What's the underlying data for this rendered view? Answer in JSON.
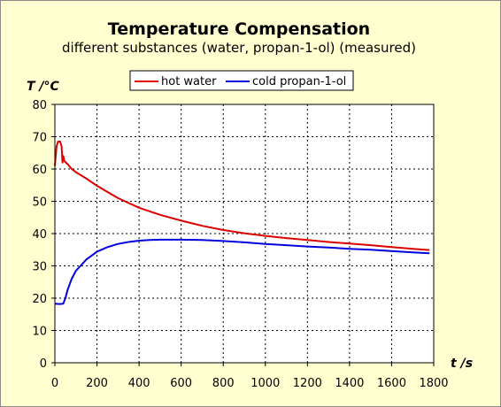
{
  "chart_data": {
    "type": "line",
    "title": "Temperature Compensation",
    "subtitle": "different substances (water, propan-1-ol) (measured)",
    "xlabel_var": "t",
    "xlabel_unit": "/s",
    "ylabel_var": "T",
    "ylabel_unit": "/°C",
    "xlim": [
      0,
      1800
    ],
    "ylim": [
      0,
      80
    ],
    "x_ticks": [
      0,
      200,
      400,
      600,
      800,
      1000,
      1200,
      1400,
      1600,
      1800
    ],
    "y_ticks": [
      0,
      10,
      20,
      30,
      40,
      50,
      60,
      70,
      80
    ],
    "grid": true,
    "legend_position": "top",
    "background_color": "#ffffd0",
    "plot_background_color": "#ffffff",
    "series": [
      {
        "name": "hot water",
        "color": "#dd0000",
        "x": [
          0,
          8,
          15,
          25,
          32,
          36,
          40,
          45,
          60,
          80,
          100,
          150,
          200,
          300,
          400,
          500,
          600,
          700,
          800,
          900,
          1000,
          1100,
          1200,
          1300,
          1400,
          1500,
          1600,
          1700,
          1780
        ],
        "y": [
          61,
          67,
          68.5,
          68.5,
          67,
          62,
          64,
          62.5,
          61.5,
          60,
          59,
          57,
          54.8,
          51,
          48,
          45.8,
          44,
          42.4,
          41.1,
          40.1,
          39.3,
          38.6,
          38,
          37.4,
          36.9,
          36.4,
          35.8,
          35.3,
          34.9
        ]
      },
      {
        "name": "cold propan-1-ol",
        "color": "#0000dd",
        "x": [
          0,
          20,
          40,
          50,
          60,
          80,
          100,
          150,
          200,
          250,
          300,
          350,
          400,
          450,
          500,
          600,
          700,
          800,
          900,
          1000,
          1100,
          1200,
          1300,
          1400,
          1500,
          1600,
          1700,
          1780
        ],
        "y": [
          18.3,
          18.2,
          18.3,
          20,
          22.5,
          26,
          28.5,
          32,
          34.4,
          35.8,
          36.8,
          37.4,
          37.8,
          38,
          38.1,
          38.1,
          38,
          37.7,
          37.3,
          36.8,
          36.4,
          36,
          35.7,
          35.3,
          35,
          34.6,
          34.2,
          33.9
        ]
      }
    ]
  }
}
